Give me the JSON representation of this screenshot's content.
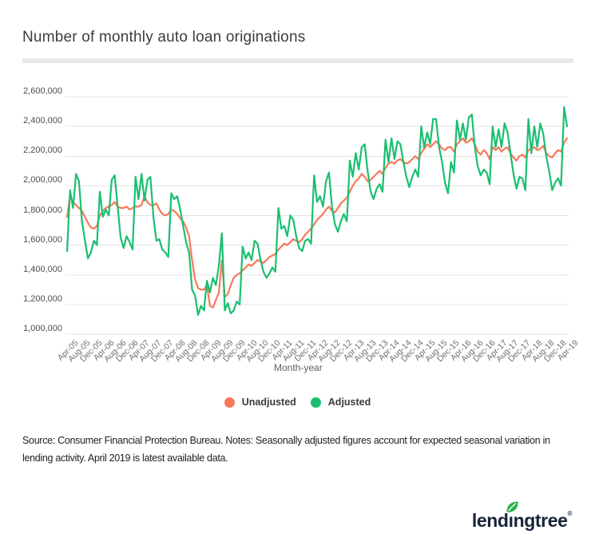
{
  "chart_data": {
    "type": "line",
    "title": "Number of monthly auto loan originations",
    "xlabel": "Month-year",
    "x_frequency": "monthly",
    "x_tick_labels": [
      "Apr-05",
      "Aug-05",
      "Dec-05",
      "Apr-06",
      "Aug-06",
      "Dec-06",
      "Apr-07",
      "Aug-07",
      "Dec-07",
      "Apr-08",
      "Aug-08",
      "Dec-08",
      "Apr-09",
      "Aug-09",
      "Dec-09",
      "Apr-10",
      "Aug-10",
      "Dec-10",
      "Apr-11",
      "Aug-11",
      "Dec-11",
      "Apr-12",
      "Aug-12",
      "Dec-12",
      "Apr-13",
      "Aug-13",
      "Dec-13",
      "Apr-14",
      "Aug-14",
      "Dec-14",
      "Apr-15",
      "Aug-15",
      "Dec-15",
      "Apr-16",
      "Aug-16",
      "Dec-16",
      "Apr-17",
      "Aug-17",
      "Dec-17",
      "Apr-18",
      "Aug-18",
      "Dec-18",
      "Apr-19"
    ],
    "x_ticks_every_n_months": 4,
    "ylim": [
      1000000,
      2600000
    ],
    "y_ticks": [
      1000000,
      1200000,
      1400000,
      1600000,
      1800000,
      2000000,
      2200000,
      2400000,
      2600000
    ],
    "grid": "horizontal",
    "legend_position": "bottom-center",
    "series": [
      {
        "name": "Unadjusted",
        "color": "#f8795a",
        "values": [
          1790000,
          1930000,
          1890000,
          1870000,
          1850000,
          1830000,
          1790000,
          1750000,
          1720000,
          1710000,
          1730000,
          1800000,
          1830000,
          1850000,
          1860000,
          1870000,
          1890000,
          1860000,
          1850000,
          1850000,
          1860000,
          1840000,
          1850000,
          1860000,
          1860000,
          1870000,
          1930000,
          1890000,
          1870000,
          1870000,
          1880000,
          1840000,
          1810000,
          1800000,
          1810000,
          1840000,
          1830000,
          1810000,
          1780000,
          1760000,
          1720000,
          1660000,
          1500000,
          1370000,
          1310000,
          1300000,
          1300000,
          1330000,
          1190000,
          1180000,
          1230000,
          1280000,
          1500000,
          1250000,
          1270000,
          1330000,
          1380000,
          1400000,
          1410000,
          1430000,
          1450000,
          1470000,
          1460000,
          1480000,
          1500000,
          1490000,
          1480000,
          1500000,
          1520000,
          1530000,
          1540000,
          1570000,
          1590000,
          1610000,
          1600000,
          1620000,
          1640000,
          1630000,
          1620000,
          1640000,
          1670000,
          1690000,
          1710000,
          1740000,
          1770000,
          1790000,
          1810000,
          1840000,
          1860000,
          1830000,
          1820000,
          1850000,
          1880000,
          1900000,
          1920000,
          1960000,
          2000000,
          2030000,
          2050000,
          2080000,
          2060000,
          2030000,
          2040000,
          2060000,
          2080000,
          2100000,
          2080000,
          2120000,
          2150000,
          2160000,
          2150000,
          2170000,
          2180000,
          2160000,
          2150000,
          2160000,
          2180000,
          2200000,
          2180000,
          2220000,
          2250000,
          2280000,
          2260000,
          2280000,
          2300000,
          2280000,
          2250000,
          2240000,
          2260000,
          2260000,
          2230000,
          2280000,
          2300000,
          2320000,
          2290000,
          2300000,
          2320000,
          2280000,
          2230000,
          2210000,
          2240000,
          2220000,
          2180000,
          2260000,
          2240000,
          2260000,
          2230000,
          2250000,
          2260000,
          2220000,
          2190000,
          2170000,
          2200000,
          2210000,
          2190000,
          2240000,
          2250000,
          2260000,
          2240000,
          2250000,
          2270000,
          2220000,
          2200000,
          2190000,
          2220000,
          2240000,
          2230000,
          2290000,
          2320000
        ]
      },
      {
        "name": "Adjusted",
        "color": "#1abf71",
        "values": [
          1560000,
          1970000,
          1850000,
          2080000,
          2030000,
          1760000,
          1630000,
          1510000,
          1550000,
          1630000,
          1600000,
          1960000,
          1790000,
          1840000,
          1800000,
          2040000,
          2070000,
          1860000,
          1650000,
          1580000,
          1660000,
          1620000,
          1570000,
          2060000,
          1910000,
          2080000,
          1900000,
          2040000,
          2060000,
          1790000,
          1630000,
          1640000,
          1570000,
          1550000,
          1520000,
          1950000,
          1910000,
          1930000,
          1840000,
          1730000,
          1620000,
          1550000,
          1300000,
          1260000,
          1130000,
          1190000,
          1160000,
          1360000,
          1280000,
          1380000,
          1330000,
          1460000,
          1680000,
          1160000,
          1210000,
          1140000,
          1160000,
          1220000,
          1200000,
          1590000,
          1510000,
          1550000,
          1500000,
          1630000,
          1610000,
          1500000,
          1420000,
          1380000,
          1410000,
          1450000,
          1420000,
          1850000,
          1710000,
          1730000,
          1660000,
          1800000,
          1770000,
          1660000,
          1580000,
          1560000,
          1630000,
          1640000,
          1610000,
          2070000,
          1890000,
          1930000,
          1860000,
          2030000,
          2090000,
          1860000,
          1740000,
          1690000,
          1760000,
          1810000,
          1760000,
          2170000,
          2060000,
          2220000,
          2110000,
          2260000,
          2280000,
          2100000,
          1960000,
          1910000,
          1980000,
          2010000,
          1960000,
          2310000,
          2160000,
          2320000,
          2180000,
          2300000,
          2280000,
          2160000,
          2060000,
          1990000,
          2060000,
          2110000,
          2060000,
          2400000,
          2260000,
          2360000,
          2280000,
          2450000,
          2450000,
          2260000,
          2160000,
          2020000,
          1950000,
          2160000,
          2090000,
          2440000,
          2310000,
          2420000,
          2310000,
          2460000,
          2480000,
          2260000,
          2130000,
          2070000,
          2110000,
          2090000,
          2010000,
          2400000,
          2260000,
          2380000,
          2260000,
          2420000,
          2360000,
          2220000,
          2080000,
          1980000,
          2060000,
          2050000,
          1970000,
          2450000,
          2220000,
          2400000,
          2260000,
          2420000,
          2350000,
          2200000,
          2100000,
          1970000,
          2020000,
          2050000,
          2000000,
          2530000,
          2400000
        ]
      }
    ]
  },
  "footer": {
    "note": "Source: Consumer Financial Protection Bureau. Notes: Seasonally adjusted figures account for expected seasonal variation in lending activity. April 2019 is latest available data."
  },
  "logo": {
    "part1": "lend",
    "dotless_i": "ı",
    "part2": "ngtree",
    "registered": "®",
    "navy": "#16233a",
    "leaf_green": "#2eb24f"
  },
  "colors": {
    "divider": "#e9e9e9",
    "gridline": "#e5e5e5",
    "y_tick_text": "#4d4d4d",
    "x_tick_text": "#6f6f6f"
  }
}
